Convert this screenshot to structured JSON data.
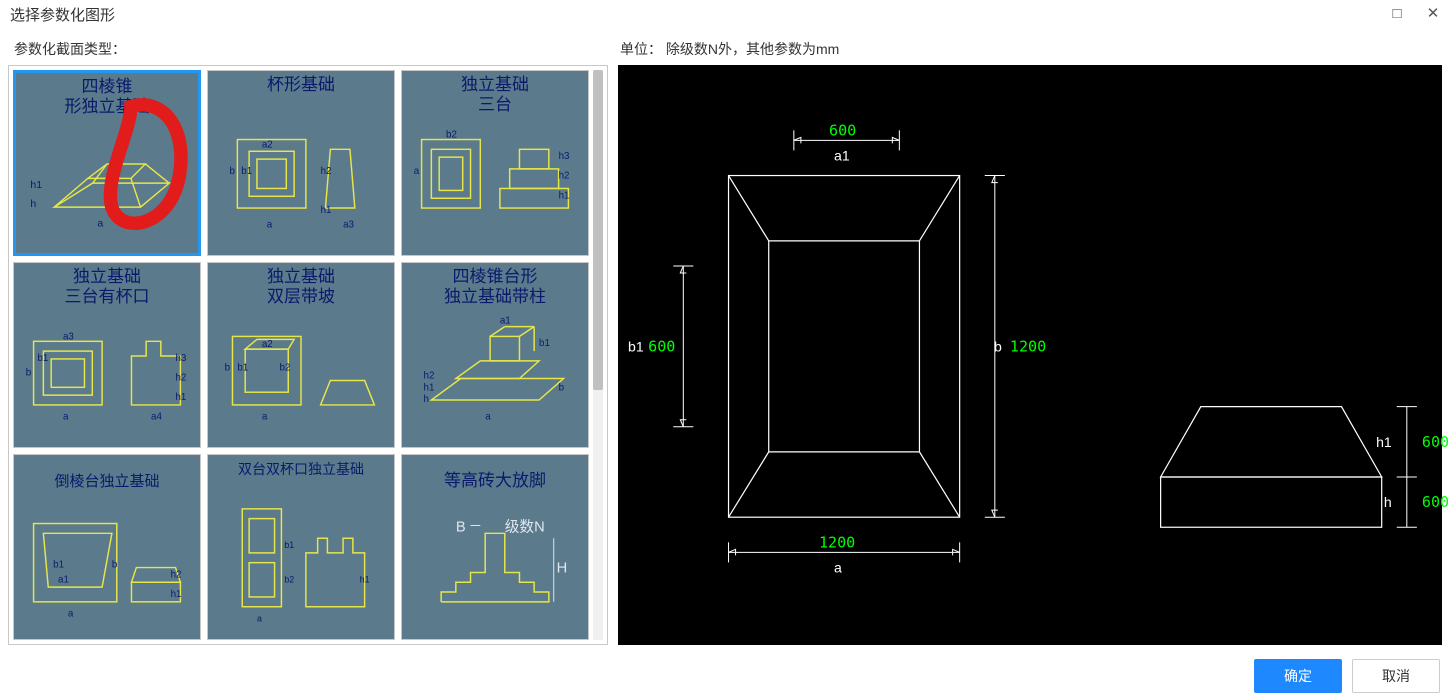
{
  "window": {
    "title": "选择参数化图形"
  },
  "labels": {
    "section_type": "参数化截面类型：",
    "unit_note": "单位： 除级数N外，其他参数为mm"
  },
  "thumbs": [
    {
      "title": "四棱锥\n形独立基础",
      "selected": true
    },
    {
      "title": "杯形基础",
      "selected": false
    },
    {
      "title": "独立基础\n三台",
      "selected": false
    },
    {
      "title": "独立基础\n三台有杯口",
      "selected": false
    },
    {
      "title": "独立基础\n双层带坡",
      "selected": false
    },
    {
      "title": "四棱锥台形\n独立基础带柱",
      "selected": false
    },
    {
      "title": "倒棱台独立基础",
      "selected": false
    },
    {
      "title": "双台双杯口独立基础",
      "selected": false
    },
    {
      "title": "等高砖大放脚",
      "selected": false
    }
  ],
  "thumb_labels": {
    "stepN": "级数N",
    "B": "B",
    "H": "H"
  },
  "preview": {
    "a": "1200",
    "a_label": "a",
    "a1": "600",
    "a1_label": "a1",
    "b": "1200",
    "b_label": "b",
    "b1": "600",
    "b1_label": "b1",
    "h": "600",
    "h_label": "h",
    "h1": "600",
    "h1_label": "h1",
    "dim_color": "#00ff00",
    "line_color": "#ffffff"
  },
  "buttons": {
    "ok": "确定",
    "cancel": "取消"
  }
}
